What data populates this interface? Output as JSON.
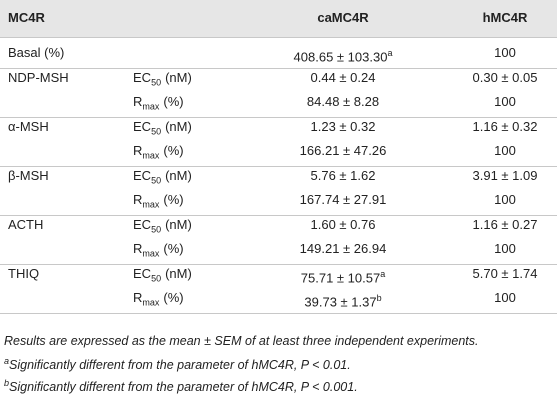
{
  "table": {
    "header": [
      "MC4R",
      "caMC4R",
      "hMC4R"
    ],
    "groups": [
      {
        "label": "Basal (%)",
        "rows": [
          {
            "ca": {
              "text": "408.65 ± 103.30",
              "sup": "a"
            },
            "h": "100"
          }
        ]
      },
      {
        "label": "NDP-MSH",
        "rows": [
          {
            "param": {
              "main": "EC",
              "sub": "50",
              "unit": "(nM)"
            },
            "ca": {
              "text": "0.44 ± 0.24"
            },
            "h": "0.30 ± 0.05"
          },
          {
            "param": {
              "main": "R",
              "sub": "max",
              "unit": "(%)"
            },
            "ca": {
              "text": "84.48 ± 8.28"
            },
            "h": "100"
          }
        ]
      },
      {
        "label": "α-MSH",
        "rows": [
          {
            "param": {
              "main": "EC",
              "sub": "50",
              "unit": "(nM)"
            },
            "ca": {
              "text": "1.23 ± 0.32"
            },
            "h": "1.16 ± 0.32"
          },
          {
            "param": {
              "main": "R",
              "sub": "max",
              "unit": "(%)"
            },
            "ca": {
              "text": "166.21 ± 47.26"
            },
            "h": "100"
          }
        ]
      },
      {
        "label": "β-MSH",
        "rows": [
          {
            "param": {
              "main": "EC",
              "sub": "50",
              "unit": "(nM)"
            },
            "ca": {
              "text": "5.76 ± 1.62"
            },
            "h": "3.91 ± 1.09"
          },
          {
            "param": {
              "main": "R",
              "sub": "max",
              "unit": "(%)"
            },
            "ca": {
              "text": "167.74 ± 27.91"
            },
            "h": "100"
          }
        ]
      },
      {
        "label": "ACTH",
        "rows": [
          {
            "param": {
              "main": "EC",
              "sub": "50",
              "unit": "(nM)"
            },
            "ca": {
              "text": "1.60 ± 0.76"
            },
            "h": "1.16 ± 0.27"
          },
          {
            "param": {
              "main": "R",
              "sub": "max",
              "unit": "(%)"
            },
            "ca": {
              "text": "149.21 ± 26.94"
            },
            "h": "100"
          }
        ]
      },
      {
        "label": "THIQ",
        "rows": [
          {
            "param": {
              "main": "EC",
              "sub": "50",
              "unit": "(nM)"
            },
            "ca": {
              "text": "75.71 ± 10.57",
              "sup": "a"
            },
            "h": "5.70 ± 1.74"
          },
          {
            "param": {
              "main": "R",
              "sub": "max",
              "unit": "(%)"
            },
            "ca": {
              "text": "39.73 ± 1.37",
              "sup": "b"
            },
            "h": "100"
          }
        ]
      }
    ],
    "footnotes": [
      {
        "text": "Results are expressed as the mean ± SEM of at least three independent experiments."
      },
      {
        "sup": "a",
        "text": "Significantly different from the parameter of hMC4R, P < 0.01."
      },
      {
        "sup": "b",
        "text": "Significantly different from the parameter of hMC4R, P < 0.001."
      }
    ]
  }
}
